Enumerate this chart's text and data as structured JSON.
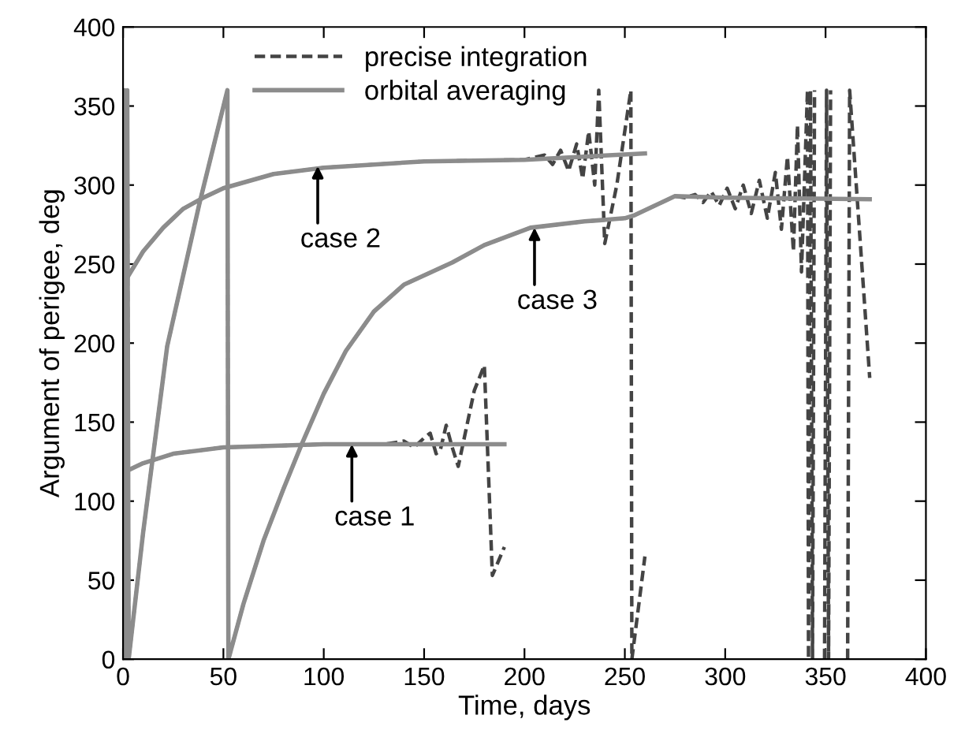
{
  "chart_data": {
    "type": "line",
    "xlabel": "Time, days",
    "ylabel": "Argument of perigee, deg",
    "xlim": [
      0,
      400
    ],
    "ylim": [
      0,
      400
    ],
    "xticks": [
      0,
      50,
      100,
      150,
      200,
      250,
      300,
      350,
      400
    ],
    "yticks": [
      0,
      50,
      100,
      150,
      200,
      250,
      300,
      350,
      400
    ],
    "grid": false,
    "legend": "top left",
    "marker": "none",
    "series": [
      {
        "name": "precise integration",
        "color": "#444444",
        "line_style": "dashed",
        "x": [
          0,
          10,
          25,
          50,
          75,
          100,
          130,
          140,
          145,
          150,
          153,
          156,
          158,
          161,
          164,
          167,
          170,
          175,
          180,
          184,
          190
        ],
        "values": [
          118,
          124,
          130,
          134,
          135,
          136,
          136,
          138,
          134,
          140,
          143,
          130,
          132,
          148,
          134,
          122,
          140,
          170,
          186,
          53,
          71
        ]
      },
      {
        "name": "orbital averaging",
        "color": "#8c8c8c",
        "line_style": "solid",
        "x": [
          0,
          10,
          25,
          50,
          75,
          100,
          150,
          190
        ],
        "values": [
          118,
          124,
          130,
          134,
          135,
          136,
          136,
          136
        ]
      },
      {
        "color": "#444444",
        "line_style": "dashed",
        "x": [
          0,
          10,
          20,
          30,
          40,
          50,
          75,
          100,
          150,
          200,
          210,
          214,
          218,
          222,
          226,
          229,
          232,
          235,
          237,
          240,
          246,
          253,
          253.5,
          260
        ],
        "values": [
          237,
          258,
          273,
          285,
          292,
          298,
          307,
          311,
          315,
          316,
          319,
          313,
          322,
          309,
          326,
          304,
          334,
          300,
          360,
          263,
          300,
          360,
          0,
          65
        ]
      },
      {
        "color": "#8c8c8c",
        "line_style": "solid",
        "x": [
          0,
          10,
          20,
          30,
          40,
          50,
          75,
          100,
          150,
          200,
          260
        ],
        "values": [
          237,
          258,
          273,
          285,
          292,
          298,
          307,
          311,
          315,
          316,
          320
        ]
      },
      {
        "color": "#444444",
        "line_style": "dashed",
        "x": [
          0,
          0.7,
          1.4,
          2.1,
          2.8,
          10,
          22,
          38,
          52,
          52.5,
          60,
          70,
          80,
          89,
          100,
          111,
          125,
          140,
          164,
          180,
          203,
          230,
          250,
          255,
          265,
          275,
          280,
          285,
          289,
          293,
          297,
          301,
          305,
          309,
          313,
          317,
          321,
          325,
          328,
          331,
          334,
          336,
          338,
          341,
          341.5,
          342.5,
          343.5,
          344.5,
          null,
          349.5,
          350.5,
          351.5,
          352.5,
          null,
          361,
          362,
          372
        ],
        "values": [
          0,
          360,
          0,
          360,
          0,
          80,
          198,
          288,
          360,
          0,
          35,
          75,
          108,
          136,
          168,
          195,
          220,
          237,
          251,
          262,
          273,
          277,
          279,
          281,
          287,
          293,
          292,
          294,
          289,
          296,
          287,
          298,
          285,
          300,
          282,
          303,
          279,
          308,
          272,
          318,
          258,
          338,
          245,
          360,
          0,
          360,
          0,
          360,
          null,
          0,
          360,
          0,
          360,
          null,
          0,
          360,
          178
        ]
      },
      {
        "color": "#8c8c8c",
        "line_style": "solid",
        "x": [
          0,
          0.7,
          1.4,
          2.1,
          2.8,
          10,
          22,
          38,
          52,
          52.5,
          60,
          70,
          80,
          89,
          100,
          111,
          125,
          140,
          164,
          180,
          203,
          230,
          250,
          255,
          265,
          275,
          300,
          372
        ],
        "values": [
          0,
          360,
          0,
          360,
          0,
          80,
          198,
          288,
          360,
          0,
          35,
          75,
          108,
          136,
          168,
          195,
          220,
          237,
          251,
          262,
          273,
          277,
          279,
          281,
          287,
          293,
          292,
          291
        ]
      }
    ],
    "annotations": [
      {
        "text": "case 1",
        "x": 114,
        "y": 136
      },
      {
        "text": "case 2",
        "x": 97,
        "y": 312
      },
      {
        "text": "case 3",
        "x": 205,
        "y": 273
      }
    ]
  }
}
